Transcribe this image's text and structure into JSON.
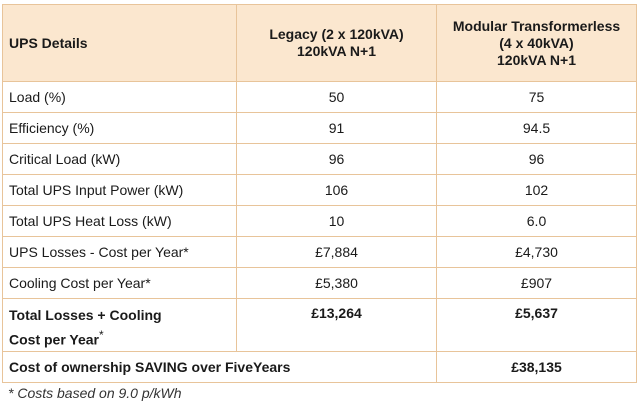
{
  "table": {
    "header": {
      "label": "UPS Details",
      "legacy": [
        "Legacy (2 x 120kVA)",
        "120kVA N+1"
      ],
      "modular": [
        "Modular Transformerless",
        "(4 x 40kVA)",
        "120kVA N+1"
      ]
    },
    "rows": [
      {
        "label": "Load (%)",
        "legacy": "50",
        "modular": "75"
      },
      {
        "label": "Efficiency (%)",
        "legacy": "91",
        "modular": "94.5"
      },
      {
        "label": "Critical Load (kW)",
        "legacy": "96",
        "modular": "96"
      },
      {
        "label": "Total UPS Input Power (kW)",
        "legacy": "106",
        "modular": "102"
      },
      {
        "label": "Total UPS Heat Loss (kW)",
        "legacy": "10",
        "modular": "6.0"
      },
      {
        "label": "UPS Losses - Cost per Year*",
        "legacy": "£7,884",
        "modular": "£4,730"
      },
      {
        "label": "Cooling Cost per Year*",
        "legacy": "£5,380",
        "modular": "£907"
      }
    ],
    "total": {
      "label_line1": "Total Losses + Cooling",
      "label_line2": "Cost per Year",
      "label_mark": "*",
      "legacy": "£13,264",
      "modular": "£5,637"
    },
    "saving": {
      "label": "Cost of ownership SAVING over FiveYears",
      "value": "£38,135"
    }
  },
  "footnote": "* Costs based on 9.0 p/kWh"
}
